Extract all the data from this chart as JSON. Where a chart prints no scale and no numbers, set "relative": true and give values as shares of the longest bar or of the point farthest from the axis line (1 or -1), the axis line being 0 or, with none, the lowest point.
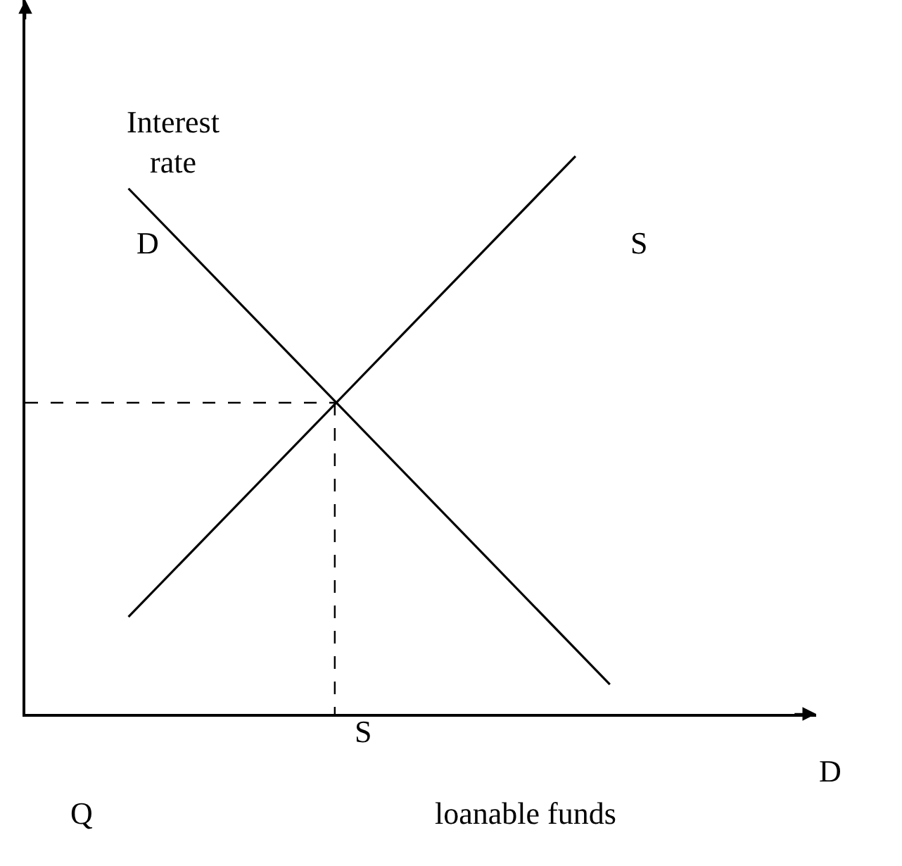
{
  "chart_data": {
    "type": "line",
    "relative": true,
    "xlabel": "loanable funds",
    "ylabel": "Interest rate",
    "legend": false,
    "marker": "none",
    "categories": [
      null,
      null,
      null,
      null,
      null,
      null,
      null,
      null,
      null,
      null,
      null,
      null,
      null,
      null,
      null,
      null,
      null,
      null,
      null,
      null,
      null,
      null,
      null,
      null
    ],
    "series": [
      {
        "name": "D",
        "color": "#000000",
        "values": [
          null,
          null,
          null,
          0.942,
          null,
          null,
          null,
          null,
          null,
          null,
          null,
          null,
          null,
          null,
          null,
          null,
          null,
          0.053,
          null,
          null,
          null,
          null,
          null,
          null
        ]
      },
      {
        "name": "S",
        "color": "#000000",
        "values": [
          null,
          null,
          null,
          0.174,
          null,
          null,
          null,
          null,
          null,
          null,
          null,
          null,
          null,
          null,
          null,
          null,
          1,
          null,
          null,
          null,
          null,
          null,
          null,
          null
        ]
      },
      {
        "color": "#000000",
        "line_style": "dashed",
        "values": [
          0.558,
          null,
          null,
          null,
          null,
          null,
          null,
          null,
          null,
          0.558,
          null,
          null,
          null,
          null,
          null,
          null,
          null,
          null,
          null,
          null,
          null,
          null,
          null,
          null
        ]
      }
    ],
    "annotations": [
      "S",
      "D",
      "Q"
    ]
  }
}
